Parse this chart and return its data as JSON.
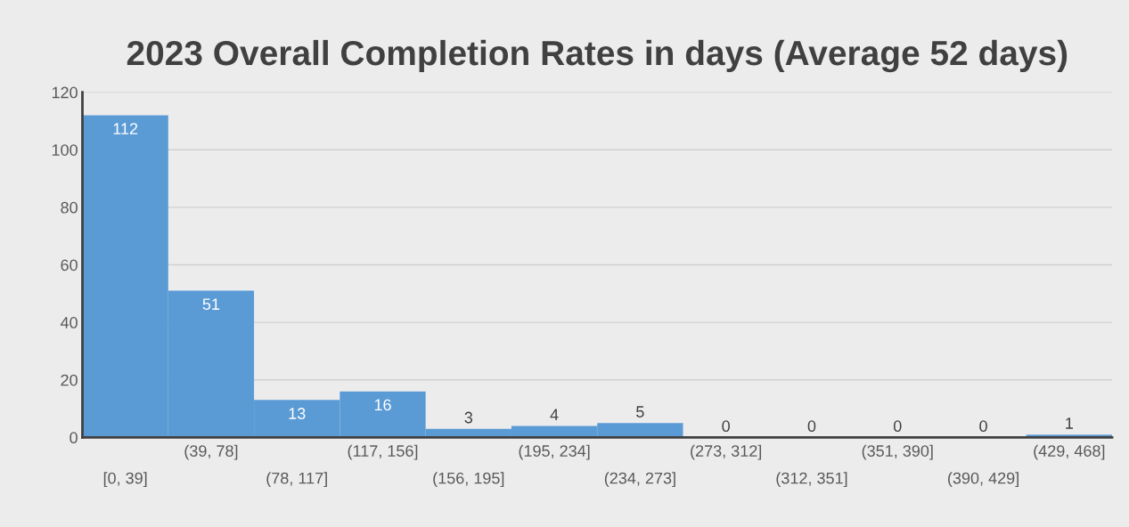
{
  "chart_data": {
    "type": "bar",
    "title": "2023 Overall Completion Rates in days (Average 52 days)",
    "categories": [
      "[0, 39]",
      "(39, 78]",
      "(78, 117]",
      "(117, 156]",
      "(156, 195]",
      "(195, 234]",
      "(234, 273]",
      "(273, 312]",
      "(312, 351]",
      "(351, 390]",
      "(390, 429]",
      "(429, 468]"
    ],
    "values": [
      112,
      51,
      13,
      16,
      3,
      4,
      5,
      0,
      0,
      0,
      0,
      1
    ],
    "color": "#5b9bd5",
    "ylim": [
      0,
      120
    ],
    "yticks": [
      0,
      20,
      40,
      60,
      80,
      100,
      120
    ],
    "grid": "y",
    "data_labels": true
  }
}
